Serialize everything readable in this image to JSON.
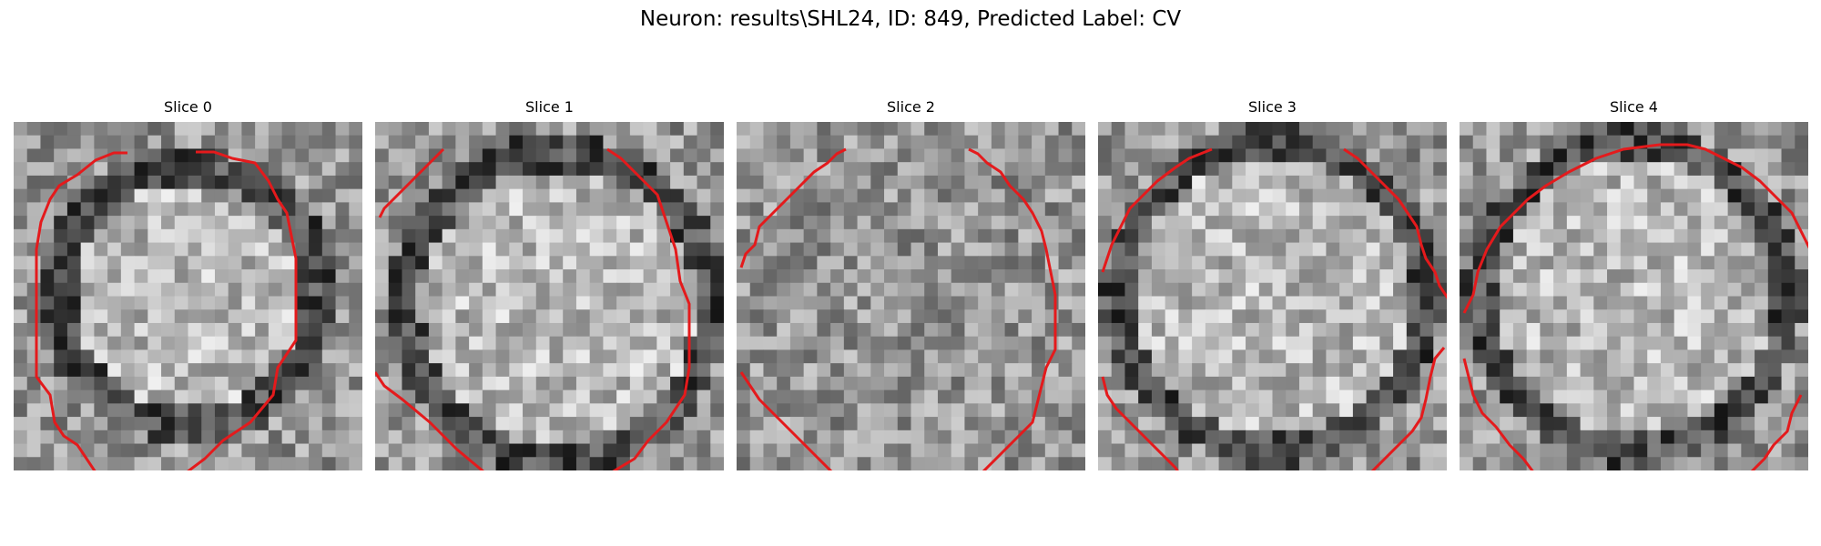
{
  "figure": {
    "title": "Neuron: results\\SHL24, ID: 849, Predicted Label: CV"
  },
  "slices": [
    {
      "title": "Slice 0"
    },
    {
      "title": "Slice 1"
    },
    {
      "title": "Slice 2"
    },
    {
      "title": "Slice 3"
    },
    {
      "title": "Slice 4"
    }
  ],
  "colors": {
    "contour": "#e41a1c",
    "background": "#ffffff",
    "text": "#000000"
  }
}
